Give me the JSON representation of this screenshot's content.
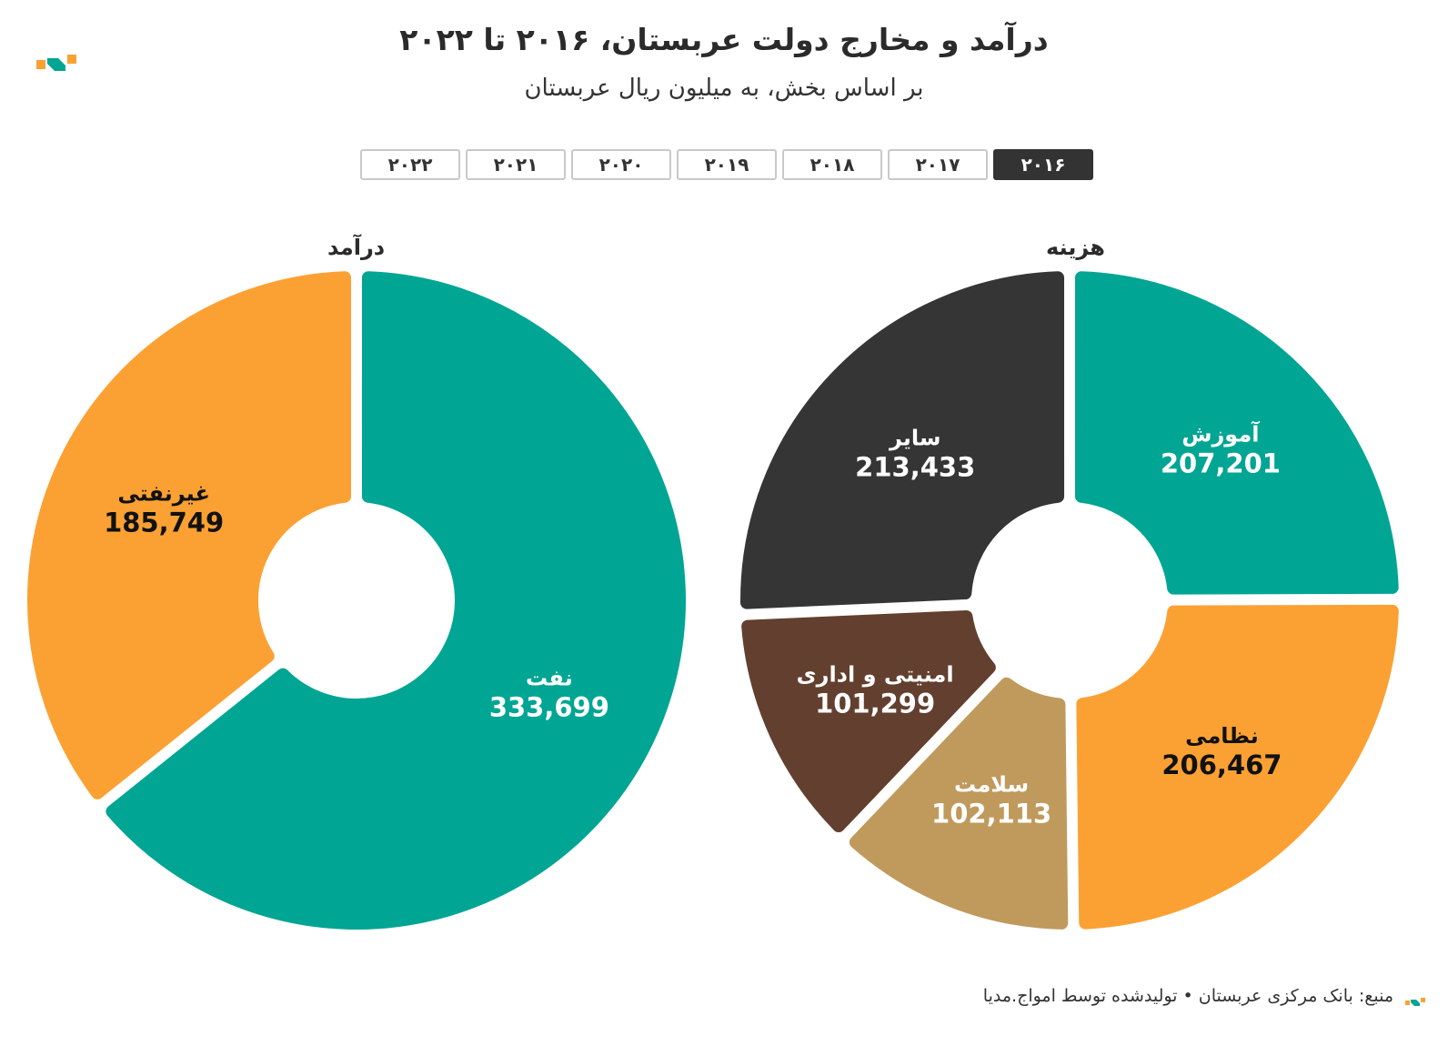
{
  "title": "درآمد و مخارج دولت عربستان، ۲۰۱۶ تا ۲۰۲۲",
  "subtitle": "بر اساس بخش، به میلیون ریال عربستان",
  "tabs": [
    {
      "label": "۲۰۱۶",
      "active": true
    },
    {
      "label": "۲۰۱۷",
      "active": false
    },
    {
      "label": "۲۰۱۸",
      "active": false
    },
    {
      "label": "۲۰۱۹",
      "active": false
    },
    {
      "label": "۲۰۲۰",
      "active": false
    },
    {
      "label": "۲۰۲۱",
      "active": false
    },
    {
      "label": "۲۰۲۲",
      "active": false
    }
  ],
  "colors": {
    "teal": "#00a593",
    "orange": "#fba133",
    "dark": "#353535",
    "brown": "#623f2e",
    "tan": "#c09a5c"
  },
  "chart_data": [
    {
      "type": "pie",
      "title": "درآمد",
      "categories": [
        "نفت",
        "غیرنفتی"
      ],
      "values": [
        333699,
        185749
      ],
      "colors": [
        "#00a593",
        "#fba133"
      ]
    },
    {
      "type": "pie",
      "title": "هزینه",
      "categories": [
        "آموزش",
        "نظامی",
        "سلامت",
        "امنیتی و اداری",
        "سایر"
      ],
      "values": [
        207201,
        206467,
        102113,
        101299,
        213433
      ],
      "colors": [
        "#00a593",
        "#fba133",
        "#c09a5c",
        "#623f2e",
        "#353535"
      ]
    }
  ],
  "footer": "منبع: بانک مرکزی عربستان • تولیدشده توسط امواج.مدیا"
}
